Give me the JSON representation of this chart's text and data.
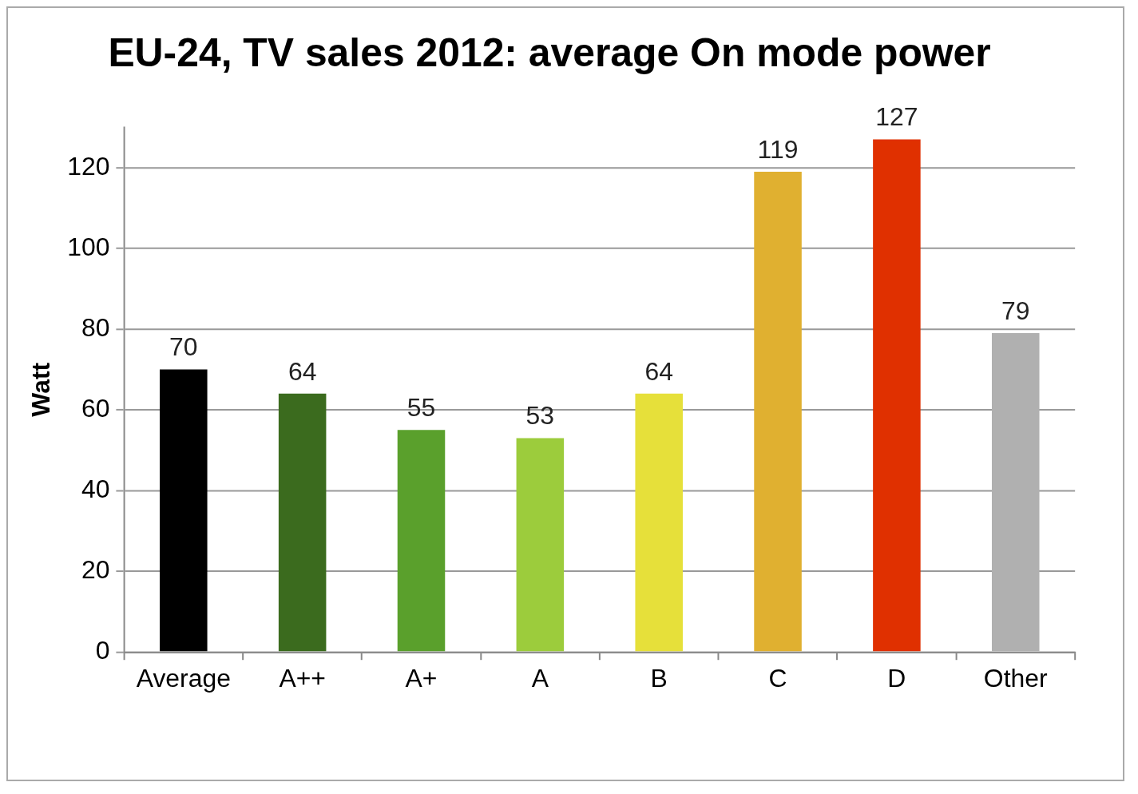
{
  "chart_data": {
    "type": "bar",
    "title": "EU-24, TV sales 2012: average On mode power",
    "ylabel": "Watt",
    "categories": [
      "Average",
      "A++",
      "A+",
      "A",
      "B",
      "C",
      "D",
      "Other"
    ],
    "values": [
      70,
      64,
      55,
      53,
      64,
      119,
      127,
      79
    ],
    "colors": [
      "#000000",
      "#3b6b1e",
      "#5aa02c",
      "#9ccc3c",
      "#e6e03a",
      "#e0b030",
      "#e03000",
      "#b0b0b0"
    ],
    "ylim": [
      0,
      130
    ],
    "yticks": [
      0,
      20,
      40,
      60,
      80,
      100,
      120
    ],
    "grid": "y",
    "data_labels": true,
    "legend": false
  }
}
